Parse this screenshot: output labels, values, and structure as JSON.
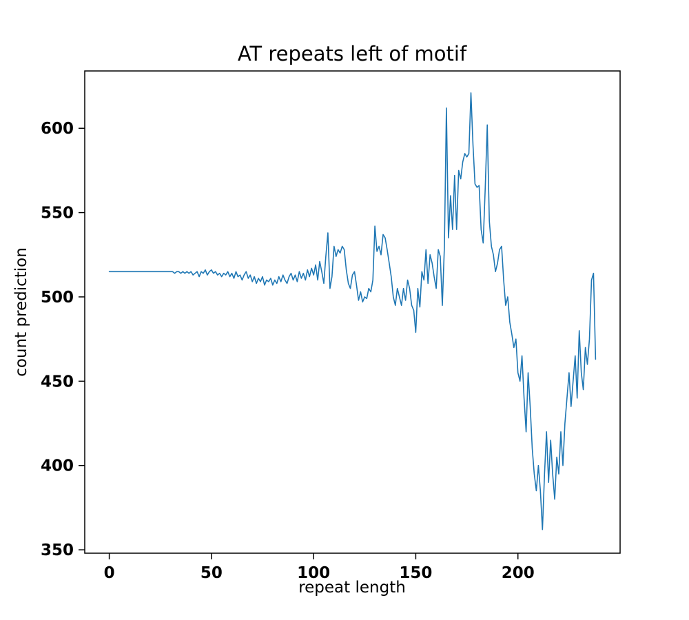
{
  "figure": {
    "background": "#ffffff"
  },
  "chart_data": {
    "type": "line",
    "title": "AT repeats left of motif",
    "xlabel": "repeat length",
    "ylabel": "count prediction",
    "legend": "off",
    "grid": "off",
    "line_color": "#1f77b4",
    "axis_color": "#000000",
    "xlim": [
      -12,
      250
    ],
    "ylim": [
      348,
      634
    ],
    "xticks": [
      0,
      50,
      100,
      150,
      200
    ],
    "yticks": [
      350,
      400,
      450,
      500,
      550,
      600
    ],
    "x": [
      0,
      1,
      2,
      3,
      4,
      5,
      6,
      7,
      8,
      9,
      10,
      11,
      12,
      13,
      14,
      15,
      16,
      17,
      18,
      19,
      20,
      21,
      22,
      23,
      24,
      25,
      26,
      27,
      28,
      29,
      30,
      31,
      32,
      33,
      34,
      35,
      36,
      37,
      38,
      39,
      40,
      41,
      42,
      43,
      44,
      45,
      46,
      47,
      48,
      49,
      50,
      51,
      52,
      53,
      54,
      55,
      56,
      57,
      58,
      59,
      60,
      61,
      62,
      63,
      64,
      65,
      66,
      67,
      68,
      69,
      70,
      71,
      72,
      73,
      74,
      75,
      76,
      77,
      78,
      79,
      80,
      81,
      82,
      83,
      84,
      85,
      86,
      87,
      88,
      89,
      90,
      91,
      92,
      93,
      94,
      95,
      96,
      97,
      98,
      99,
      100,
      101,
      102,
      103,
      104,
      105,
      106,
      107,
      108,
      109,
      110,
      111,
      112,
      113,
      114,
      115,
      116,
      117,
      118,
      119,
      120,
      121,
      122,
      123,
      124,
      125,
      126,
      127,
      128,
      129,
      130,
      131,
      132,
      133,
      134,
      135,
      136,
      137,
      138,
      139,
      140,
      141,
      142,
      143,
      144,
      145,
      146,
      147,
      148,
      149,
      150,
      151,
      152,
      153,
      154,
      155,
      156,
      157,
      158,
      159,
      160,
      161,
      162,
      163,
      164,
      165,
      166,
      167,
      168,
      169,
      170,
      171,
      172,
      173,
      174,
      175,
      176,
      177,
      178,
      179,
      180,
      181,
      182,
      183,
      184,
      185,
      186,
      187,
      188,
      189,
      190,
      191,
      192,
      193,
      194,
      195,
      196,
      197,
      198,
      199,
      200,
      201,
      202,
      203,
      204,
      205,
      206,
      207,
      208,
      209,
      210,
      211,
      212,
      213,
      214,
      215,
      216,
      217,
      218,
      219,
      220,
      221,
      222,
      223,
      224,
      225,
      226,
      227,
      228,
      229,
      230,
      231,
      232,
      233,
      234,
      235,
      236,
      237,
      238
    ],
    "y": [
      515,
      515,
      515,
      515,
      515,
      515,
      515,
      515,
      515,
      515,
      515,
      515,
      515,
      515,
      515,
      515,
      515,
      515,
      515,
      515,
      515,
      515,
      515,
      515,
      515,
      515,
      515,
      515,
      515,
      515,
      515,
      515,
      514,
      515,
      515,
      514,
      515,
      514,
      515,
      514,
      515,
      513,
      514,
      515,
      512,
      515,
      514,
      516,
      513,
      515,
      516,
      514,
      515,
      513,
      514,
      512,
      514,
      513,
      515,
      512,
      514,
      511,
      515,
      512,
      513,
      510,
      513,
      515,
      511,
      513,
      509,
      512,
      508,
      511,
      509,
      512,
      507,
      510,
      509,
      511,
      507,
      510,
      508,
      512,
      509,
      513,
      510,
      508,
      512,
      514,
      510,
      513,
      509,
      515,
      511,
      514,
      510,
      516,
      512,
      517,
      513,
      519,
      510,
      521,
      515,
      508,
      524,
      538,
      505,
      512,
      530,
      524,
      528,
      526,
      530,
      528,
      516,
      508,
      505,
      513,
      515,
      507,
      498,
      503,
      497,
      500,
      499,
      505,
      503,
      510,
      542,
      527,
      530,
      525,
      537,
      535,
      528,
      520,
      512,
      500,
      495,
      505,
      500,
      495,
      505,
      498,
      510,
      505,
      495,
      492,
      479,
      505,
      494,
      515,
      510,
      528,
      508,
      525,
      520,
      512,
      505,
      528,
      524,
      495,
      530,
      612,
      535,
      560,
      540,
      572,
      540,
      575,
      570,
      580,
      585,
      583,
      585,
      621,
      590,
      567,
      565,
      566,
      540,
      532,
      565,
      602,
      545,
      530,
      525,
      515,
      520,
      528,
      530,
      510,
      495,
      500,
      485,
      478,
      470,
      475,
      455,
      450,
      465,
      440,
      420,
      455,
      435,
      410,
      395,
      385,
      400,
      385,
      362,
      395,
      420,
      390,
      415,
      395,
      380,
      405,
      395,
      420,
      400,
      425,
      440,
      455,
      435,
      450,
      465,
      440,
      480,
      455,
      445,
      470,
      460,
      475,
      510,
      514,
      463
    ]
  }
}
